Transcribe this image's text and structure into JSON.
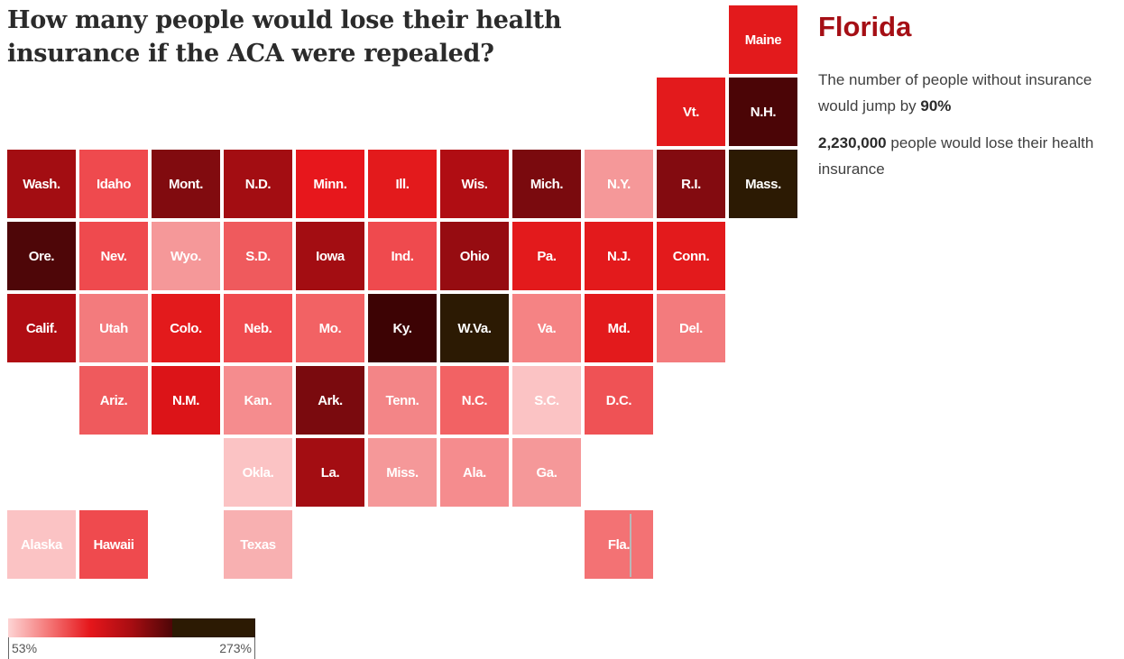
{
  "title": "How many people would lose their health insurance if the ACA were repealed?",
  "detail": {
    "state": "Florida",
    "line1_prefix": "The number of people without insurance would jump by ",
    "line1_value": "90%",
    "line2_value": "2,230,000",
    "line2_suffix": " people would lose their health insurance"
  },
  "legend": {
    "min_label": "53%",
    "max_label": "273%"
  },
  "selected_state": "Fla.",
  "states": [
    {
      "label": "Maine",
      "row": 0,
      "col": 10,
      "color": "#e31a1c"
    },
    {
      "label": "Vt.",
      "row": 1,
      "col": 9,
      "color": "#e31a1c"
    },
    {
      "label": "N.H.",
      "row": 1,
      "col": 10,
      "color": "#4b0506"
    },
    {
      "label": "Wash.",
      "row": 2,
      "col": 0,
      "color": "#a30d12"
    },
    {
      "label": "Idaho",
      "row": 2,
      "col": 1,
      "color": "#ef4a4e"
    },
    {
      "label": "Mont.",
      "row": 2,
      "col": 2,
      "color": "#810b0f"
    },
    {
      "label": "N.D.",
      "row": 2,
      "col": 3,
      "color": "#a30d12"
    },
    {
      "label": "Minn.",
      "row": 2,
      "col": 4,
      "color": "#e7171c"
    },
    {
      "label": "Ill.",
      "row": 2,
      "col": 5,
      "color": "#e31a1c"
    },
    {
      "label": "Wis.",
      "row": 2,
      "col": 6,
      "color": "#b00d13"
    },
    {
      "label": "Mich.",
      "row": 2,
      "col": 7,
      "color": "#7a0a0e"
    },
    {
      "label": "N.Y.",
      "row": 2,
      "col": 8,
      "color": "#f59899"
    },
    {
      "label": "R.I.",
      "row": 2,
      "col": 9,
      "color": "#830b10"
    },
    {
      "label": "Mass.",
      "row": 2,
      "col": 10,
      "color": "#2c1a03"
    },
    {
      "label": "Ore.",
      "row": 3,
      "col": 0,
      "color": "#4e0608"
    },
    {
      "label": "Nev.",
      "row": 3,
      "col": 1,
      "color": "#ef4a4e"
    },
    {
      "label": "Wyo.",
      "row": 3,
      "col": 2,
      "color": "#f59899"
    },
    {
      "label": "S.D.",
      "row": 3,
      "col": 3,
      "color": "#ef5a5d"
    },
    {
      "label": "Iowa",
      "row": 3,
      "col": 4,
      "color": "#a30d12"
    },
    {
      "label": "Ind.",
      "row": 3,
      "col": 5,
      "color": "#ef4a4e"
    },
    {
      "label": "Ohio",
      "row": 3,
      "col": 6,
      "color": "#960c11"
    },
    {
      "label": "Pa.",
      "row": 3,
      "col": 7,
      "color": "#e31a1c"
    },
    {
      "label": "N.J.",
      "row": 3,
      "col": 8,
      "color": "#e31a1c"
    },
    {
      "label": "Conn.",
      "row": 3,
      "col": 9,
      "color": "#e31a1c"
    },
    {
      "label": "Calif.",
      "row": 4,
      "col": 0,
      "color": "#b00d13"
    },
    {
      "label": "Utah",
      "row": 4,
      "col": 1,
      "color": "#f37b7d"
    },
    {
      "label": "Colo.",
      "row": 4,
      "col": 2,
      "color": "#e31a1c"
    },
    {
      "label": "Neb.",
      "row": 4,
      "col": 3,
      "color": "#ef4a4e"
    },
    {
      "label": "Mo.",
      "row": 4,
      "col": 4,
      "color": "#f26264"
    },
    {
      "label": "Ky.",
      "row": 4,
      "col": 5,
      "color": "#3d0304"
    },
    {
      "label": "W.Va.",
      "row": 4,
      "col": 6,
      "color": "#2c1a03"
    },
    {
      "label": "Va.",
      "row": 4,
      "col": 7,
      "color": "#f58384"
    },
    {
      "label": "Md.",
      "row": 4,
      "col": 8,
      "color": "#e31a1c"
    },
    {
      "label": "Del.",
      "row": 4,
      "col": 9,
      "color": "#f37b7d"
    },
    {
      "label": "Ariz.",
      "row": 5,
      "col": 1,
      "color": "#ef5a5d"
    },
    {
      "label": "N.M.",
      "row": 5,
      "col": 2,
      "color": "#dc1418"
    },
    {
      "label": "Kan.",
      "row": 5,
      "col": 3,
      "color": "#f58c8e"
    },
    {
      "label": "Ark.",
      "row": 5,
      "col": 4,
      "color": "#7a0a0e"
    },
    {
      "label": "Tenn.",
      "row": 5,
      "col": 5,
      "color": "#f38587"
    },
    {
      "label": "N.C.",
      "row": 5,
      "col": 6,
      "color": "#f26264"
    },
    {
      "label": "S.C.",
      "row": 5,
      "col": 7,
      "color": "#fbc3c4"
    },
    {
      "label": "D.C.",
      "row": 5,
      "col": 8,
      "color": "#ef5255"
    },
    {
      "label": "Okla.",
      "row": 6,
      "col": 3,
      "color": "#fbc3c4"
    },
    {
      "label": "La.",
      "row": 6,
      "col": 4,
      "color": "#a30d12"
    },
    {
      "label": "Miss.",
      "row": 6,
      "col": 5,
      "color": "#f59899"
    },
    {
      "label": "Ala.",
      "row": 6,
      "col": 6,
      "color": "#f58c8e"
    },
    {
      "label": "Ga.",
      "row": 6,
      "col": 7,
      "color": "#f59899"
    },
    {
      "label": "Alaska",
      "row": 7,
      "col": 0,
      "color": "#fbc3c4"
    },
    {
      "label": "Hawaii",
      "row": 7,
      "col": 1,
      "color": "#ef4a4e"
    },
    {
      "label": "Texas",
      "row": 7,
      "col": 3,
      "color": "#f8b0b1"
    },
    {
      "label": "Fla.",
      "row": 7,
      "col": 8,
      "color": "#f37274"
    }
  ]
}
